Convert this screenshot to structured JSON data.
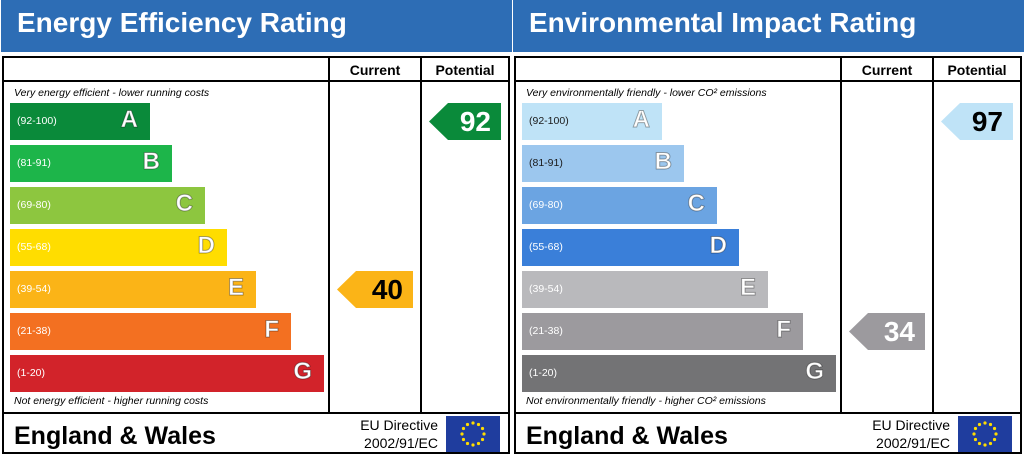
{
  "panels": [
    {
      "title": "Energy Efficiency Rating",
      "col_current": "Current",
      "col_potential": "Potential",
      "note_top": "Very energy efficient - lower running costs",
      "note_bottom": "Not energy efficient - higher running costs",
      "footer_title": "England & Wales",
      "directive_line1": "EU Directive",
      "directive_line2": "2002/91/EC",
      "bands": [
        {
          "letter": "A",
          "range": "(92-100)",
          "color": "#0a8a3a"
        },
        {
          "letter": "B",
          "range": "(81-91)",
          "color": "#1db54a"
        },
        {
          "letter": "C",
          "range": "(69-80)",
          "color": "#8dc63f"
        },
        {
          "letter": "D",
          "range": "(55-68)",
          "color": "#ffdd00"
        },
        {
          "letter": "E",
          "range": "(39-54)",
          "color": "#fbb417"
        },
        {
          "letter": "F",
          "range": "(21-38)",
          "color": "#f37021"
        },
        {
          "letter": "G",
          "range": "(1-20)",
          "color": "#d2232a"
        }
      ],
      "current": {
        "value": "40",
        "band": "E",
        "color": "#fbb417"
      },
      "potential": {
        "value": "92",
        "band": "A",
        "color": "#0a8a3a"
      }
    },
    {
      "title": "Environmental Impact Rating",
      "col_current": "Current",
      "col_potential": "Potential",
      "note_top": "Very environmentally friendly - lower CO² emissions",
      "note_bottom": "Not environmentally friendly - higher CO² emissions",
      "footer_title": "England & Wales",
      "directive_line1": "EU Directive",
      "directive_line2": "2002/91/EC",
      "bands": [
        {
          "letter": "A",
          "range": "(92-100)",
          "color": "#bfe3f7"
        },
        {
          "letter": "B",
          "range": "(81-91)",
          "color": "#9cc7ee"
        },
        {
          "letter": "C",
          "range": "(69-80)",
          "color": "#6ba4e2"
        },
        {
          "letter": "D",
          "range": "(55-68)",
          "color": "#3a7fd9"
        },
        {
          "letter": "E",
          "range": "(39-54)",
          "color": "#b9b9bc"
        },
        {
          "letter": "F",
          "range": "(21-38)",
          "color": "#9c9a9e"
        },
        {
          "letter": "G",
          "range": "(1-20)",
          "color": "#737375"
        }
      ],
      "current": {
        "value": "34",
        "band": "F",
        "color": "#9c9a9e"
      },
      "potential": {
        "value": "97",
        "band": "A",
        "color": "#bfe3f7"
      }
    }
  ],
  "chart_data": [
    {
      "type": "bar",
      "title": "Energy Efficiency Rating",
      "categories": [
        "A",
        "B",
        "C",
        "D",
        "E",
        "F",
        "G"
      ],
      "ranges": [
        "(92-100)",
        "(81-91)",
        "(69-80)",
        "(55-68)",
        "(39-54)",
        "(21-38)",
        "(1-20)"
      ],
      "series": [
        {
          "name": "Current",
          "value": 40,
          "band": "E"
        },
        {
          "name": "Potential",
          "value": 92,
          "band": "A"
        }
      ]
    },
    {
      "type": "bar",
      "title": "Environmental Impact Rating",
      "categories": [
        "A",
        "B",
        "C",
        "D",
        "E",
        "F",
        "G"
      ],
      "ranges": [
        "(92-100)",
        "(81-91)",
        "(69-80)",
        "(55-68)",
        "(39-54)",
        "(21-38)",
        "(1-20)"
      ],
      "series": [
        {
          "name": "Current",
          "value": 34,
          "band": "F"
        },
        {
          "name": "Potential",
          "value": 97,
          "band": "A"
        }
      ]
    }
  ]
}
